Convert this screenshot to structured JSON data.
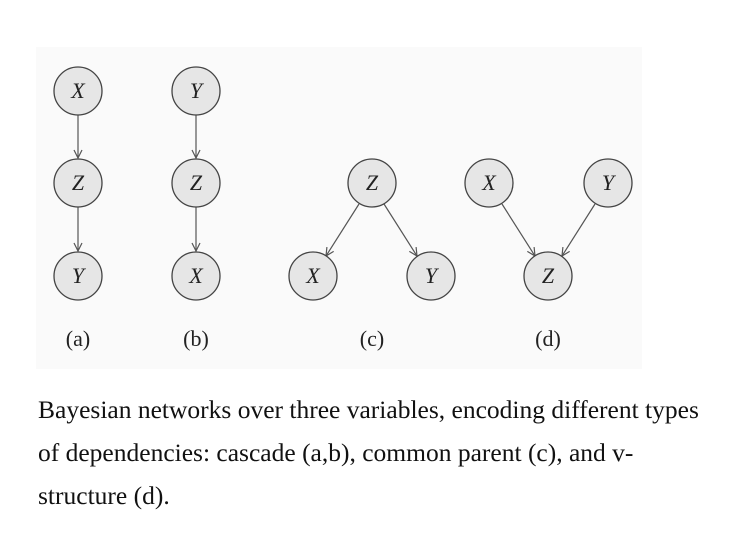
{
  "figure": {
    "subfigures": [
      {
        "id": "a",
        "label": "(a)",
        "nodes": [
          "X",
          "Z",
          "Y"
        ],
        "edges": [
          [
            "X",
            "Z"
          ],
          [
            "Z",
            "Y"
          ]
        ]
      },
      {
        "id": "b",
        "label": "(b)",
        "nodes": [
          "Y",
          "Z",
          "X"
        ],
        "edges": [
          [
            "Y",
            "Z"
          ],
          [
            "Z",
            "X"
          ]
        ]
      },
      {
        "id": "c",
        "label": "(c)",
        "nodes": [
          "Z",
          "X",
          "Y"
        ],
        "edges": [
          [
            "Z",
            "X"
          ],
          [
            "Z",
            "Y"
          ]
        ]
      },
      {
        "id": "d",
        "label": "(d)",
        "nodes": [
          "X",
          "Y",
          "Z"
        ],
        "edges": [
          [
            "X",
            "Z"
          ],
          [
            "Y",
            "Z"
          ]
        ]
      }
    ]
  },
  "caption": "Bayesian networks over three variables, encoding different types of dependencies: cascade (a,b), common parent (c), and v-structure (d).",
  "colors": {
    "node_fill": "#e6e6e6",
    "node_stroke": "#444444",
    "edge": "#555555",
    "panel_background": "#fafafa"
  }
}
